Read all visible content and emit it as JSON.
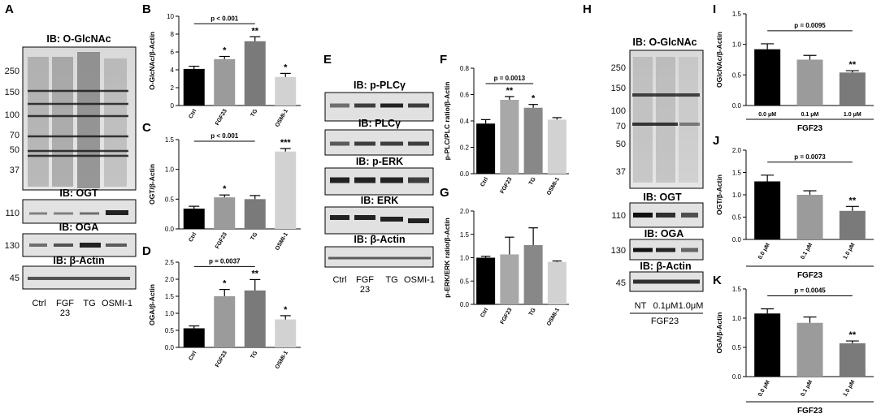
{
  "panel_letters": {
    "A": "A",
    "B": "B",
    "C": "C",
    "D": "D",
    "E": "E",
    "F": "F",
    "G": "G",
    "H": "H",
    "I": "I",
    "J": "J",
    "K": "K"
  },
  "blot_A": {
    "title": "IB: O-GlcNAc",
    "markers": [
      "250",
      "150",
      "100",
      "70",
      "50",
      "37"
    ],
    "ogt": {
      "title": "IB: OGT",
      "marker": "110"
    },
    "oga": {
      "title": "IB: OGA",
      "marker": "130"
    },
    "actin": {
      "title": "IB: β-Actin",
      "marker": "45"
    },
    "lanes": [
      "Ctrl",
      "FGF\n23",
      "TG",
      "OSMI-1"
    ]
  },
  "blot_E": {
    "titles": [
      "IB: p-PLCγ",
      "IB: PLCγ",
      "IB: p-ERK",
      "IB: ERK",
      "IB: β-Actin"
    ],
    "lanes": [
      "Ctrl",
      "FGF\n23",
      "TG",
      "OSMI-1"
    ]
  },
  "blot_H": {
    "title": "IB: O-GlcNAc",
    "markers": [
      "250",
      "150",
      "100",
      "70",
      "50",
      "37"
    ],
    "ogt": {
      "title": "IB: OGT",
      "marker": "110"
    },
    "oga": {
      "title": "IB: OGA",
      "marker": "130"
    },
    "actin": {
      "title": "IB: β-Actin",
      "marker": "45"
    },
    "lanes": [
      "NT",
      "0.1μM",
      "1.0μM"
    ],
    "group": "FGF23"
  },
  "colors": {
    "black": "#000000",
    "gray1": "#9b9b9b",
    "gray2": "#7a7a7a",
    "gray3": "#d2d2d2",
    "gray_mid": "#a8a8a8",
    "gray_dark": "#888888"
  },
  "chart_data": [
    {
      "id": "B",
      "type": "bar",
      "categories": [
        "Ctrl",
        "FGF23",
        "TG",
        "OSMI-1"
      ],
      "values": [
        4.1,
        5.2,
        7.2,
        3.2
      ],
      "errors": [
        0.3,
        0.3,
        0.5,
        0.4
      ],
      "sig": [
        "",
        "*",
        "**",
        "*"
      ],
      "ylabel": "O-GlcNAc/β-Actin",
      "ylim": [
        0,
        10
      ],
      "yticks": [
        0,
        2,
        4,
        6,
        8,
        10
      ],
      "ytick_labels": [
        "0",
        "2",
        "4",
        "6",
        "8",
        "10"
      ],
      "bracket": {
        "from": 0,
        "to": 2,
        "label": "p < 0.001"
      },
      "colors": [
        "#000000",
        "#9b9b9b",
        "#7a7a7a",
        "#d2d2d2"
      ]
    },
    {
      "id": "C",
      "type": "bar",
      "categories": [
        "Ctrl",
        "FGF23",
        "TG",
        "OSMI-1"
      ],
      "values": [
        0.34,
        0.53,
        0.5,
        1.3
      ],
      "errors": [
        0.04,
        0.04,
        0.06,
        0.05
      ],
      "sig": [
        "",
        "*",
        "",
        "***"
      ],
      "ylabel": "OGT/β-Actin",
      "ylim": [
        0,
        1.5
      ],
      "yticks": [
        0,
        0.5,
        1.0,
        1.5
      ],
      "ytick_labels": [
        "0.0",
        "0.5",
        "1.0",
        "1.5"
      ],
      "bracket": {
        "from": 0,
        "to": 2,
        "label": "p < 0.001"
      },
      "colors": [
        "#000000",
        "#9b9b9b",
        "#7a7a7a",
        "#d2d2d2"
      ]
    },
    {
      "id": "D",
      "type": "bar",
      "categories": [
        "Ctrl",
        "FGF23",
        "TG",
        "OSMI-1"
      ],
      "values": [
        0.56,
        1.5,
        1.67,
        0.82
      ],
      "errors": [
        0.07,
        0.2,
        0.32,
        0.11
      ],
      "sig": [
        "",
        "*",
        "**",
        "*"
      ],
      "ylabel": "OGA/β-Actin",
      "ylim": [
        0,
        2.5
      ],
      "yticks": [
        0,
        0.5,
        1.0,
        1.5,
        2.0,
        2.5
      ],
      "ytick_labels": [
        "0.0",
        "0.5",
        "1.0",
        "1.5",
        "2.0",
        "2.5"
      ],
      "bracket": {
        "from": 0,
        "to": 2,
        "label": "p = 0.0037"
      },
      "colors": [
        "#000000",
        "#9b9b9b",
        "#7a7a7a",
        "#d2d2d2"
      ]
    },
    {
      "id": "F",
      "type": "bar",
      "categories": [
        "Ctrl",
        "FGF23",
        "TG",
        "OSMI-1"
      ],
      "values": [
        0.38,
        0.56,
        0.5,
        0.41
      ],
      "errors": [
        0.03,
        0.025,
        0.025,
        0.015
      ],
      "sig": [
        "",
        "**",
        "*",
        ""
      ],
      "ylabel": "p-PLC/PLC ratio/β-Actin",
      "ylim": [
        0,
        0.8
      ],
      "yticks": [
        0,
        0.2,
        0.4,
        0.6,
        0.8
      ],
      "ytick_labels": [
        "0.0",
        "0.2",
        "0.4",
        "0.6",
        "0.8"
      ],
      "bracket": {
        "from": 0,
        "to": 2,
        "label": "p = 0.0013"
      },
      "colors": [
        "#000000",
        "#a8a8a8",
        "#888888",
        "#d2d2d2"
      ]
    },
    {
      "id": "G",
      "type": "bar",
      "categories": [
        "Ctrl",
        "FGF23",
        "TG",
        "OSMI-1"
      ],
      "values": [
        1.0,
        1.07,
        1.27,
        0.91
      ],
      "errors": [
        0.03,
        0.37,
        0.37,
        0.02
      ],
      "sig": [
        "",
        "",
        "",
        ""
      ],
      "ylabel": "p-ERK/ERK ratio/β-Actin",
      "ylim": [
        0,
        2.0
      ],
      "yticks": [
        0,
        0.5,
        1.0,
        1.5,
        2.0
      ],
      "ytick_labels": [
        "0.0",
        "0.5",
        "1.0",
        "1.5",
        "2.0"
      ],
      "bracket": null,
      "colors": [
        "#000000",
        "#a8a8a8",
        "#888888",
        "#d2d2d2"
      ]
    },
    {
      "id": "I",
      "type": "bar",
      "categories": [
        "0.0 μM",
        "0.1 μM",
        "1.0 μM"
      ],
      "values": [
        0.92,
        0.75,
        0.54
      ],
      "errors": [
        0.09,
        0.07,
        0.03
      ],
      "sig": [
        "",
        "",
        "**"
      ],
      "ylabel": "OGlcNAc/β-Actin",
      "ylim": [
        0,
        1.5
      ],
      "yticks": [
        0,
        0.5,
        1.0,
        1.5
      ],
      "ytick_labels": [
        "0.0",
        "0.5",
        "1.0",
        "1.5"
      ],
      "bracket": {
        "from": 0,
        "to": 2,
        "label": "p = 0.0095"
      },
      "group": "FGF23",
      "colors": [
        "#000000",
        "#9b9b9b",
        "#7a7a7a"
      ]
    },
    {
      "id": "J",
      "type": "bar",
      "categories": [
        "0.0 μM",
        "0.1 μM",
        "1.0 μM"
      ],
      "values": [
        1.3,
        1.0,
        0.64
      ],
      "errors": [
        0.14,
        0.09,
        0.1
      ],
      "sig": [
        "",
        "",
        "**"
      ],
      "ylabel": "OGT/β-Actin",
      "ylim": [
        0,
        2.0
      ],
      "yticks": [
        0,
        0.5,
        1.0,
        1.5,
        2.0
      ],
      "ytick_labels": [
        "0.0",
        "0.5",
        "1.0",
        "1.5",
        "2.0"
      ],
      "bracket": {
        "from": 0,
        "to": 2,
        "label": "p = 0.0073"
      },
      "group": "FGF23",
      "colors": [
        "#000000",
        "#9b9b9b",
        "#7a7a7a"
      ]
    },
    {
      "id": "K",
      "type": "bar",
      "categories": [
        "0.0 μM",
        "0.1 μM",
        "1.0 μM"
      ],
      "values": [
        1.08,
        0.92,
        0.57
      ],
      "errors": [
        0.08,
        0.1,
        0.04
      ],
      "sig": [
        "",
        "",
        "**"
      ],
      "ylabel": "OGA/β-Actin",
      "ylim": [
        0,
        1.5
      ],
      "yticks": [
        0,
        0.5,
        1.0,
        1.5
      ],
      "ytick_labels": [
        "0.0",
        "0.5",
        "1.0",
        "1.5"
      ],
      "bracket": {
        "from": 0,
        "to": 2,
        "label": "p = 0.0045"
      },
      "group": "FGF23",
      "colors": [
        "#000000",
        "#9b9b9b",
        "#7a7a7a"
      ]
    }
  ]
}
